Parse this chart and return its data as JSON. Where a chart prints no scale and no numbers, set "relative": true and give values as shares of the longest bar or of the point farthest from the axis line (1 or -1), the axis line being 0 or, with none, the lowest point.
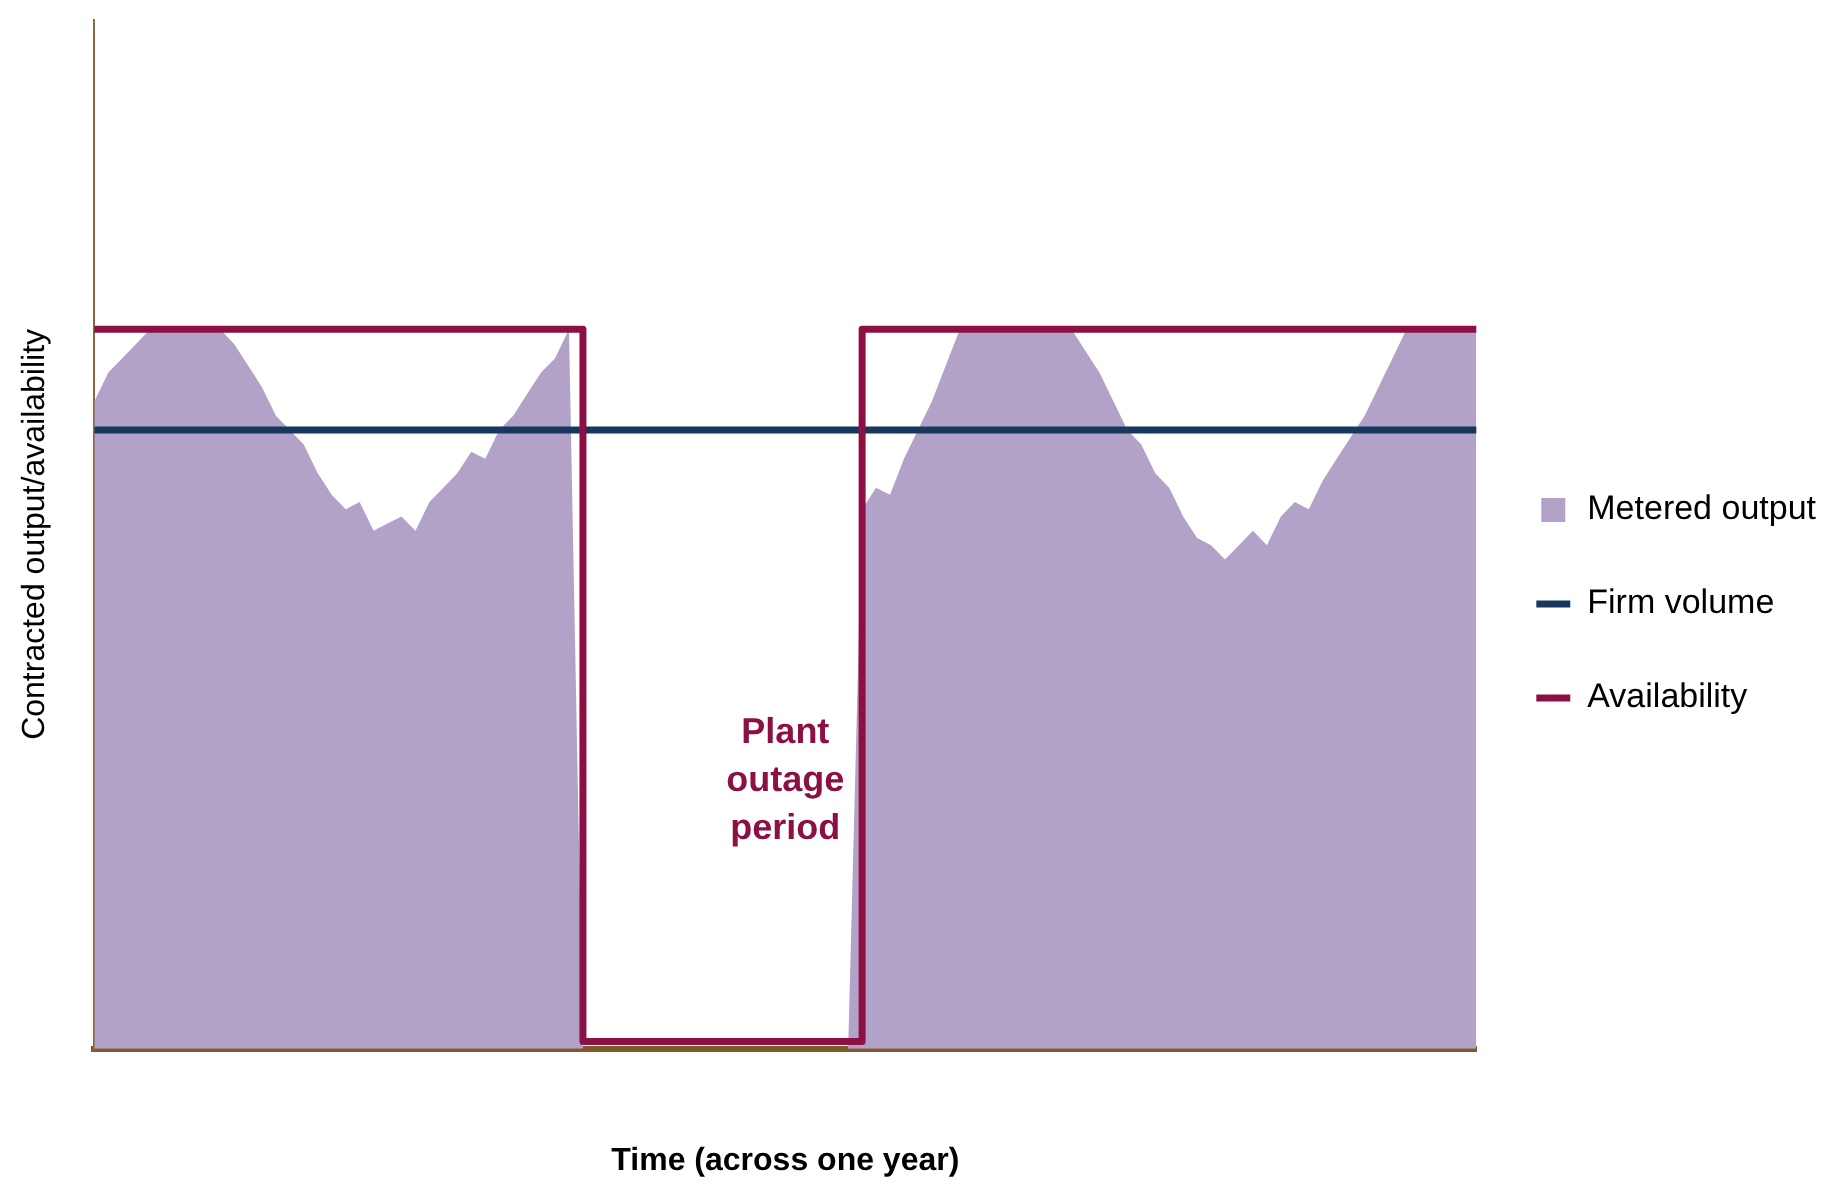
{
  "chart_data": {
    "type": "area",
    "relative": true,
    "ylabel": "Contracted output/availability",
    "xlabel": "Time (across one year)",
    "grid": false,
    "legend": "right",
    "annotations": [
      "Plant outage period"
    ],
    "categories": [
      null,
      null,
      null,
      null,
      null,
      null,
      null,
      null,
      null,
      null,
      null,
      null,
      null,
      null,
      null,
      null,
      null,
      null,
      null,
      null,
      null,
      null,
      null,
      null,
      null,
      null,
      null,
      null,
      null,
      null,
      null,
      null,
      null,
      null,
      null,
      null,
      null,
      null,
      null,
      null,
      null,
      null,
      null,
      null,
      null,
      null,
      null,
      null,
      null,
      null,
      null,
      null,
      null,
      null,
      null,
      null,
      null,
      null,
      null,
      null,
      null,
      null,
      null,
      null,
      null,
      null,
      null,
      null,
      null,
      null,
      null,
      null,
      null,
      null,
      null,
      null,
      null,
      null,
      null,
      null,
      null,
      null,
      null,
      null,
      null,
      null,
      null,
      null,
      null,
      null,
      null,
      null,
      null,
      null,
      null,
      null,
      null,
      null,
      null,
      null
    ],
    "series": [
      {
        "name": "Metered output",
        "color": "#b3a2c7",
        "values": [
          0.9,
          0.94,
          0.96,
          0.98,
          1,
          1,
          1,
          1,
          1,
          1,
          0.98,
          0.95,
          0.92,
          0.88,
          0.86,
          0.84,
          0.8,
          0.77,
          0.75,
          0.76,
          0.72,
          0.73,
          0.74,
          0.72,
          0.76,
          0.78,
          0.8,
          0.83,
          0.82,
          0.86,
          0.88,
          0.91,
          0.94,
          0.96,
          1,
          0,
          0,
          0,
          0,
          0,
          0,
          0,
          0,
          0,
          0,
          0,
          0,
          0,
          0,
          0,
          0,
          0,
          0,
          0,
          0,
          0.75,
          0.78,
          0.77,
          0.82,
          0.86,
          0.9,
          0.95,
          1,
          1,
          1,
          1,
          1,
          1,
          1,
          1,
          1,
          0.97,
          0.94,
          0.9,
          0.86,
          0.84,
          0.8,
          0.78,
          0.74,
          0.71,
          0.7,
          0.68,
          0.7,
          0.72,
          0.7,
          0.74,
          0.76,
          0.75,
          0.79,
          0.82,
          0.85,
          0.88,
          0.92,
          0.96,
          1,
          1,
          1,
          1,
          1,
          1
        ]
      },
      {
        "name": "Firm volume",
        "type": "line",
        "color": "#17375e",
        "values": [
          0.86,
          0.86,
          0.86,
          0.86,
          0.86,
          0.86,
          0.86,
          0.86,
          0.86,
          0.86,
          0.86,
          0.86,
          0.86,
          0.86,
          0.86,
          0.86,
          0.86,
          0.86,
          0.86,
          0.86,
          0.86,
          0.86,
          0.86,
          0.86,
          0.86,
          0.86,
          0.86,
          0.86,
          0.86,
          0.86,
          0.86,
          0.86,
          0.86,
          0.86,
          0.86,
          0.86,
          0.86,
          0.86,
          0.86,
          0.86,
          0.86,
          0.86,
          0.86,
          0.86,
          0.86,
          0.86,
          0.86,
          0.86,
          0.86,
          0.86,
          0.86,
          0.86,
          0.86,
          0.86,
          0.86,
          0.86,
          0.86,
          0.86,
          0.86,
          0.86,
          0.86,
          0.86,
          0.86,
          0.86,
          0.86,
          0.86,
          0.86,
          0.86,
          0.86,
          0.86,
          0.86,
          0.86,
          0.86,
          0.86,
          0.86,
          0.86,
          0.86,
          0.86,
          0.86,
          0.86,
          0.86,
          0.86,
          0.86,
          0.86,
          0.86,
          0.86,
          0.86,
          0.86,
          0.86,
          0.86,
          0.86,
          0.86,
          0.86,
          0.86,
          0.86,
          0.86,
          0.86,
          0.86,
          0.86,
          0.86
        ]
      },
      {
        "name": "Availability",
        "type": "step",
        "color": "#8c1043",
        "values": [
          1,
          1,
          1,
          1,
          1,
          1,
          1,
          1,
          1,
          1,
          1,
          1,
          1,
          1,
          1,
          1,
          1,
          1,
          1,
          1,
          1,
          1,
          1,
          1,
          1,
          1,
          1,
          1,
          1,
          1,
          1,
          1,
          1,
          1,
          1,
          0.01,
          0.01,
          0.01,
          0.01,
          0.01,
          0.01,
          0.01,
          0.01,
          0.01,
          0.01,
          0.01,
          0.01,
          0.01,
          0.01,
          0.01,
          0.01,
          0.01,
          0.01,
          0.01,
          0.01,
          1,
          1,
          1,
          1,
          1,
          1,
          1,
          1,
          1,
          1,
          1,
          1,
          1,
          1,
          1,
          1,
          1,
          1,
          1,
          1,
          1,
          1,
          1,
          1,
          1,
          1,
          1,
          1,
          1,
          1,
          1,
          1,
          1,
          1,
          1,
          1,
          1,
          1,
          1,
          1,
          1,
          1,
          1,
          1,
          1
        ]
      }
    ]
  }
}
